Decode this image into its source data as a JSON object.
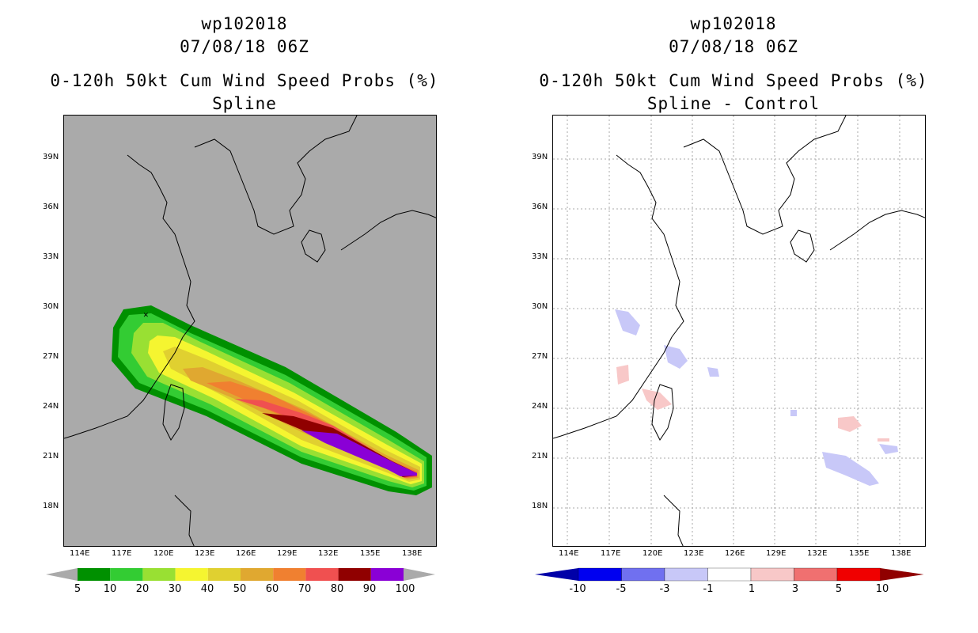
{
  "panel_left": {
    "storm_id": "wp102018",
    "datetime": "07/08/18 06Z",
    "product": "0-120h 50kt Cum Wind Speed Probs (%)",
    "method": "Spline",
    "lat_labels": [
      "39N",
      "36N",
      "33N",
      "30N",
      "27N",
      "24N",
      "21N",
      "18N"
    ],
    "lon_labels": [
      "114E",
      "117E",
      "120E",
      "123E",
      "126E",
      "129E",
      "132E",
      "135E",
      "138E"
    ],
    "colorbar": {
      "labels": [
        "5",
        "10",
        "20",
        "30",
        "40",
        "50",
        "60",
        "70",
        "80",
        "90",
        "100"
      ],
      "colors": [
        "#009000",
        "#33cc33",
        "#99e033",
        "#f5f530",
        "#e0d030",
        "#e0a830",
        "#f08030",
        "#f05050",
        "#900000",
        "#8a00d6"
      ]
    }
  },
  "panel_right": {
    "storm_id": "wp102018",
    "datetime": "07/08/18 06Z",
    "product": "0-120h 50kt Cum Wind Speed Probs (%)",
    "method": "Spline - Control",
    "lat_labels": [
      "39N",
      "36N",
      "33N",
      "30N",
      "27N",
      "24N",
      "21N",
      "18N"
    ],
    "lon_labels": [
      "114E",
      "117E",
      "120E",
      "123E",
      "126E",
      "129E",
      "132E",
      "135E",
      "138E"
    ],
    "colorbar": {
      "labels": [
        "-10",
        "-5",
        "-3",
        "-1",
        "1",
        "3",
        "5",
        "10"
      ],
      "colors": [
        "#0000a8",
        "#0000f0",
        "#7070f0",
        "#c8c8f8",
        "#ffffff",
        "#f8c8c8",
        "#f07070",
        "#f00000",
        "#900000"
      ]
    }
  }
}
